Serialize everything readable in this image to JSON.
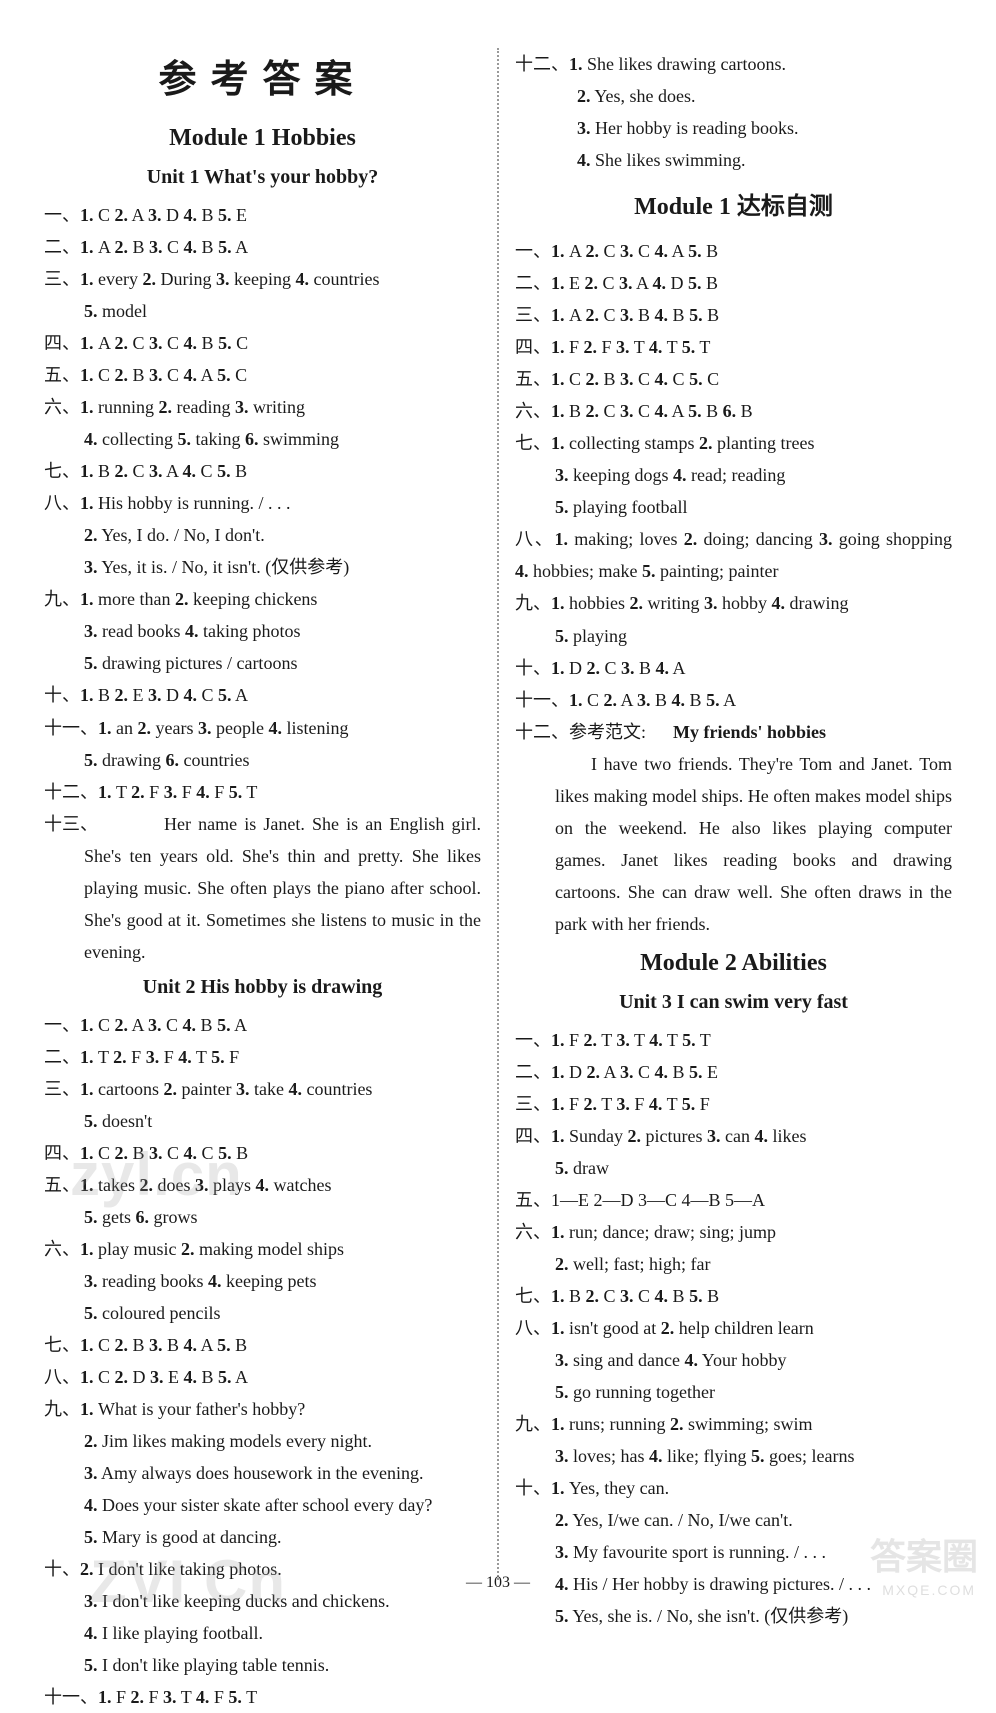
{
  "page_number": "— 103 —",
  "main_title": "参考答案",
  "watermarks": {
    "w1": "zyl.cn",
    "w2": "ZVI Cn",
    "w3": "答案圈",
    "w4": "MXQE.COM"
  },
  "colors": {
    "text": "#1a1a1a",
    "background": "#ffffff",
    "divider": "#999999",
    "watermark": "rgba(150,150,150,0.22)"
  },
  "left": {
    "module1_title": "Module 1  Hobbies",
    "unit1_title": "Unit 1  What's your hobby?",
    "u1": {
      "l1": "一、1. C  2. A  3. D  4. B  5. E",
      "l2": "二、1. A  2. B  3. C  4. B  5. A",
      "l3": "三、1. every  2. During  3. keeping  4. countries",
      "l3b": "5. model",
      "l4": "四、1. A  2. C  3. C  4. B  5. C",
      "l5": "五、1. C  2. B  3. C  4. A  5. C",
      "l6": "六、1. running  2. reading  3. writing",
      "l6b": "4. collecting  5. taking  6. swimming",
      "l7": "七、1. B  2. C  3. A  4. C  5. B",
      "l8": "八、1. His hobby is running.  / . . .",
      "l8b": "2. Yes, I do.  /  No, I don't.",
      "l8c": "3. Yes, it is.  /  No, it isn't. (仅供参考)",
      "l9": "九、1. more than  2. keeping chickens",
      "l9b": "3. read books  4. taking photos",
      "l9c": "5. drawing pictures  /  cartoons",
      "l10": "十、1. B  2. E  3. D  4. C  5. A",
      "l11": "十一、1. an   2. years   3. people   4. listening",
      "l11b": "5. drawing   6. countries",
      "l12": "十二、1. T  2. F  3. F  4. F  5. T",
      "l13_label": "十三、",
      "l13_text": "Her name is Janet. She is an English girl. She's ten years old. She's thin and pretty. She likes playing music. She often plays the piano after school. She's good at it. Sometimes she listens to music in the evening."
    },
    "unit2_title": "Unit 2  His hobby is drawing",
    "u2": {
      "l1": "一、1. C  2. A  3. C  4. B  5. A",
      "l2": "二、1. T  2. F  3. F  4. T  5. F",
      "l3": "三、1. cartoons  2. painter  3. take  4. countries",
      "l3b": "5. doesn't",
      "l4": "四、1. C  2. B  3. C  4. C  5. B",
      "l5": "五、1. takes  2. does  3. plays  4. watches",
      "l5b": "5. gets  6. grows",
      "l6": "六、1. play music  2. making model ships",
      "l6b": "3. reading books  4. keeping pets",
      "l6c": "5. coloured pencils",
      "l7": "七、1. C  2. B  3. B  4. A  5. B",
      "l8": "八、1. C  2. D  3. E  4. B  5. A",
      "l9": "九、1. What is your father's hobby?",
      "l9b": "2. Jim likes making models every night.",
      "l9c": "3. Amy always does housework in the evening.",
      "l9d": "4. Does your sister skate after school every day?",
      "l9e": "5. Mary is good at dancing.",
      "l10": "十、2. I don't like taking photos.",
      "l10b": "3. I don't like keeping ducks and chickens.",
      "l10c": "4. I like playing football.",
      "l10d": "5. I don't like playing table tennis.",
      "l11": "十一、1. F  2. F  3. T  4. F  5. T"
    }
  },
  "right": {
    "top": {
      "l1": "十二、1. She likes drawing cartoons.",
      "l2": "2. Yes, she does.",
      "l3": "3. Her hobby is reading books.",
      "l4": "4. She likes swimming."
    },
    "module1_test_title": "Module 1  达标自测",
    "test": {
      "l1": "一、1. A   2. C   3. C  4. A   5. B",
      "l2": "二、1. E  2. C  3. A  4. D  5. B",
      "l3": "三、1. A  2. C  3. B  4. B  5. B",
      "l4": "四、1. F  2. F  3. T  4. T  5. T",
      "l5": "五、1. C  2. B  3. C  4. C  5. C",
      "l6": "六、1. B  2. C  3. C  4. A  5. B  6. B",
      "l7": "七、1. collecting stamps   2. planting trees",
      "l7b": "3. keeping dogs  4. read; reading",
      "l7c": "5. playing football",
      "l8": "八、1. making; loves   2. doing; dancing   3. going shopping   4. hobbies; make   5. painting; painter",
      "l9": "九、1. hobbies  2. writing  3. hobby  4. drawing",
      "l9b": "5. playing",
      "l10": "十、1. D  2. C  3. B  4. A",
      "l11": "十一、1. C  2. A  3. B  4. B  5. A",
      "l12_label": "十二、参考范文:",
      "l12_title": "My friends' hobbies",
      "l12_text": "I have two friends. They're Tom and Janet. Tom likes making model ships. He often makes model ships on the weekend. He also likes playing computer games. Janet likes reading books and drawing cartoons. She can draw well. She often draws in the park with her friends."
    },
    "module2_title": "Module 2  Abilities",
    "unit3_title": "Unit 3  I can swim very fast",
    "u3": {
      "l1": "一、1. F  2. T  3. T  4. T  5. T",
      "l2": "二、1. D  2. A  3. C  4. B  5. E",
      "l3": "三、1. F  2. T  3. F  4. T  5. F",
      "l4": "四、1.  Sunday    2.  pictures    3.  can    4.  likes",
      "l4b": "5. draw",
      "l5": "五、1—E  2—D  3—C  4—B  5—A",
      "l6": "六、1. run; dance; draw; sing; jump",
      "l6b": "2. well; fast; high; far",
      "l7": "七、1. B  2. C  3. C  4. B  5. B",
      "l8": "八、1. isn't good at  2. help children learn",
      "l8b": "3. sing and dance  4. Your hobby",
      "l8c": "5. go running together",
      "l9": "九、1. runs; running   2. swimming; swim",
      "l9b": "3. loves; has  4. like; flying  5. goes; learns",
      "l10": "十、1. Yes, they can.",
      "l10b": "2. Yes, I/we can.  /  No, I/we can't.",
      "l10c": "3. My favourite sport is running.  / . . .",
      "l10d": "4. His  /  Her hobby is drawing pictures.  / . . .",
      "l10e": "5. Yes, she is.  /  No, she isn't. (仅供参考)"
    }
  }
}
